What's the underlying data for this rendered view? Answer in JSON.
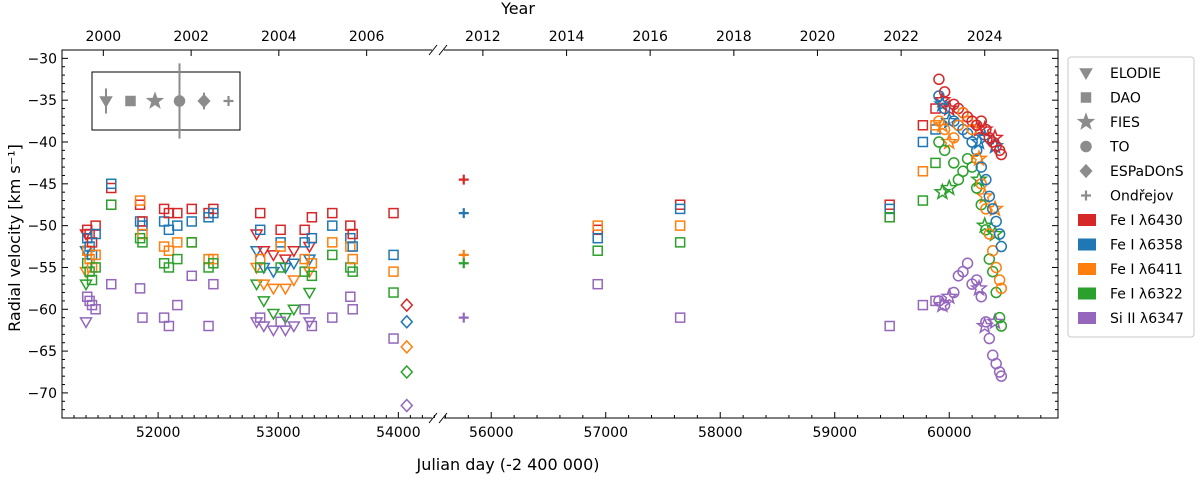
{
  "chart_data": {
    "type": "scatter",
    "xlabel": "Julian day (-2 400 000)",
    "ylabel": "Radial velocity [km s⁻¹]",
    "top_axis_label": "Year",
    "ylim": [
      -73,
      -29
    ],
    "x_left_range": [
      51200,
      54330
    ],
    "x_right_range": [
      55570,
      60950
    ],
    "x_ticks_left": [
      52000,
      53000,
      54000
    ],
    "x_ticks_right": [
      56000,
      57000,
      58000,
      59000,
      60000
    ],
    "y_ticks": [
      -30,
      -35,
      -40,
      -45,
      -50,
      -55,
      -60,
      -65,
      -70
    ],
    "year_ticks": [
      {
        "label": "2000",
        "jd": 51544
      },
      {
        "label": "2002",
        "jd": 52275
      },
      {
        "label": "2004",
        "jd": 53005
      },
      {
        "label": "2006",
        "jd": 53736
      },
      {
        "label": "2012",
        "jd": 55927
      },
      {
        "label": "2014",
        "jd": 56658
      },
      {
        "label": "2016",
        "jd": 57388
      },
      {
        "label": "2018",
        "jd": 58119
      },
      {
        "label": "2020",
        "jd": 58849
      },
      {
        "label": "2022",
        "jd": 59580
      },
      {
        "label": "2024",
        "jd": 60310
      }
    ],
    "instruments": [
      {
        "name": "ELODIE",
        "marker": "triangle"
      },
      {
        "name": "DAO",
        "marker": "square"
      },
      {
        "name": "FIES",
        "marker": "star"
      },
      {
        "name": "TO",
        "marker": "circle"
      },
      {
        "name": "ESPaDOnS",
        "marker": "diamond"
      },
      {
        "name": "Ondřejov",
        "marker": "plus"
      }
    ],
    "series": [
      {
        "name": "Fe I λ6430",
        "color": "#d62728",
        "offset": 2.0
      },
      {
        "name": "Fe I λ6358",
        "color": "#1f77b4",
        "offset": 0.0
      },
      {
        "name": "Fe I λ6411",
        "color": "#ff7f0e",
        "offset": -1.5
      },
      {
        "name": "Fe I λ6322",
        "color": "#2ca02c",
        "offset": -3.5
      },
      {
        "name": "Si II λ6347",
        "color": "#9467bd",
        "offset": -9.0
      }
    ],
    "error_bars": [
      {
        "instrument": "ELODIE",
        "half": 1.5
      },
      {
        "instrument": "DAO",
        "half": 0.2
      },
      {
        "instrument": "FIES",
        "half": 0.2
      },
      {
        "instrument": "TO",
        "half": 4.5
      },
      {
        "instrument": "ESPaDOnS",
        "half": 1.0
      },
      {
        "instrument": "Ondřejov",
        "half": 0.3
      }
    ],
    "epochs": [
      {
        "jd": 51400,
        "inst": "triangle",
        "v": [
          -51.0,
          -53.0,
          -55.5,
          -57.0,
          -61.5
        ]
      },
      {
        "jd": 51410,
        "inst": "square",
        "v": [
          -50.5,
          -51.5,
          -53.0,
          -54.5,
          -58.5
        ]
      },
      {
        "jd": 51430,
        "inst": "square",
        "v": [
          -51.0,
          -52.5,
          -54.0,
          -55.5,
          -59.0
        ]
      },
      {
        "jd": 51450,
        "inst": "square",
        "v": [
          -52.0,
          -53.5,
          -55.0,
          -56.5,
          -59.5
        ]
      },
      {
        "jd": 51480,
        "inst": "square",
        "v": [
          -50.0,
          -51.0,
          -53.5,
          -55.0,
          -60.0
        ]
      },
      {
        "jd": 51610,
        "inst": "square",
        "v": [
          -45.5,
          -45.0,
          -47.5,
          -47.5,
          -57.0
        ]
      },
      {
        "jd": 51850,
        "inst": "square",
        "v": [
          -47.5,
          -49.5,
          -47.0,
          -51.5,
          -57.5
        ]
      },
      {
        "jd": 51870,
        "inst": "square",
        "v": [
          -49.5,
          -50.0,
          -51.0,
          -52.0,
          -61.0
        ]
      },
      {
        "jd": 52050,
        "inst": "square",
        "v": [
          -48.0,
          -49.5,
          -52.5,
          -54.5,
          -61.0
        ]
      },
      {
        "jd": 52090,
        "inst": "square",
        "v": [
          -48.5,
          -50.5,
          -53.0,
          -55.0,
          -62.0
        ]
      },
      {
        "jd": 52160,
        "inst": "square",
        "v": [
          -48.5,
          -50.0,
          -52.0,
          -54.0,
          -59.5
        ]
      },
      {
        "jd": 52280,
        "inst": "square",
        "v": [
          -48.0,
          -49.5,
          -52.0,
          -52.0,
          -56.0
        ]
      },
      {
        "jd": 52420,
        "inst": "square",
        "v": [
          -48.5,
          -49.0,
          -54.0,
          -55.0,
          -62.0
        ]
      },
      {
        "jd": 52460,
        "inst": "square",
        "v": [
          -48.0,
          -48.5,
          -54.0,
          -54.5,
          -57.0
        ]
      },
      {
        "jd": 52820,
        "inst": "triangle",
        "v": [
          -51.0,
          -53.0,
          -55.0,
          -57.0,
          -61.5
        ]
      },
      {
        "jd": 52880,
        "inst": "triangle",
        "v": [
          -53.0,
          -55.0,
          -57.0,
          -59.0,
          -62.0
        ]
      },
      {
        "jd": 52960,
        "inst": "triangle",
        "v": [
          -53.5,
          -55.5,
          -57.5,
          -60.5,
          -62.5
        ]
      },
      {
        "jd": 53060,
        "inst": "triangle",
        "v": [
          -54.0,
          -55.0,
          -57.5,
          -61.0,
          -62.5
        ]
      },
      {
        "jd": 53130,
        "inst": "triangle",
        "v": [
          -53.0,
          -54.5,
          -56.5,
          -60.0,
          -62.0
        ]
      },
      {
        "jd": 53260,
        "inst": "triangle",
        "v": [
          -52.5,
          -54.0,
          -55.5,
          -58.0,
          -61.5
        ]
      },
      {
        "jd": 52850,
        "inst": "square",
        "v": [
          -48.5,
          -50.5,
          -54.0,
          -55.0,
          -61.0
        ]
      },
      {
        "jd": 53020,
        "inst": "square",
        "v": [
          -50.5,
          -52.0,
          -52.5,
          -55.0,
          -61.5
        ]
      },
      {
        "jd": 53220,
        "inst": "square",
        "v": [
          -50.5,
          -52.0,
          -54.0,
          -55.5,
          -60.0
        ]
      },
      {
        "jd": 53280,
        "inst": "square",
        "v": [
          -49.0,
          -51.5,
          -54.5,
          -56.0,
          -62.0
        ]
      },
      {
        "jd": 53450,
        "inst": "square",
        "v": [
          -48.5,
          -50.0,
          -52.0,
          -53.5,
          -61.0
        ]
      },
      {
        "jd": 53600,
        "inst": "square",
        "v": [
          -50.0,
          -51.5,
          -52.5,
          -55.0,
          -58.5
        ]
      },
      {
        "jd": 53620,
        "inst": "square",
        "v": [
          -51.0,
          -52.5,
          -54.0,
          -55.5,
          -60.0
        ]
      },
      {
        "jd": 53960,
        "inst": "square",
        "v": [
          -48.5,
          -53.5,
          -55.5,
          -58.0,
          -63.5
        ]
      },
      {
        "jd": 54070,
        "inst": "diamond",
        "v": [
          -59.5,
          -61.5,
          -64.5,
          -67.5,
          -71.5
        ]
      },
      {
        "jd": 55760,
        "inst": "plus",
        "v": [
          -44.5,
          -48.5,
          -53.5,
          -54.5,
          -61.0
        ]
      },
      {
        "jd": 56930,
        "inst": "square",
        "v": [
          -50.5,
          -51.5,
          -50.0,
          -53.0,
          -57.0
        ]
      },
      {
        "jd": 57650,
        "inst": "square",
        "v": [
          -47.5,
          -48.0,
          -50.0,
          -52.0,
          -61.0
        ]
      },
      {
        "jd": 59480,
        "inst": "square",
        "v": [
          -47.5,
          -48.0,
          -49.0,
          -49.0,
          -62.0
        ]
      },
      {
        "jd": 59770,
        "inst": "square",
        "v": [
          -38.0,
          -40.0,
          -43.5,
          -47.0,
          -59.5
        ]
      },
      {
        "jd": 59880,
        "inst": "square",
        "v": [
          -36.0,
          -38.5,
          -38.0,
          -42.5,
          -59.0
        ]
      },
      {
        "jd": 59940,
        "inst": "star",
        "v": [
          -35.0,
          -35.5,
          -38.0,
          -46.0,
          -59.5
        ]
      },
      {
        "jd": 60000,
        "inst": "star",
        "v": [
          -36.0,
          -37.5,
          -40.0,
          -45.5,
          -58.5
        ]
      },
      {
        "jd": 60260,
        "inst": "star",
        "v": [
          -38.5,
          -40.0,
          -42.0,
          -44.5,
          -57.5
        ]
      },
      {
        "jd": 60310,
        "inst": "star",
        "v": [
          -38.5,
          -39.5,
          -46.5,
          -50.0,
          -62.0
        ]
      },
      {
        "jd": 60400,
        "inst": "star",
        "v": [
          -39.5,
          -40.5,
          -48.0,
          -51.0,
          -61.5
        ]
      },
      {
        "jd": 59910,
        "inst": "circle",
        "v": [
          -32.5,
          -34.5,
          -37.5,
          -40.0,
          -59.0
        ]
      },
      {
        "jd": 59960,
        "inst": "circle",
        "v": [
          -34.0,
          -36.0,
          -38.5,
          -41.0,
          -59.5
        ]
      },
      {
        "jd": 60040,
        "inst": "circle",
        "v": [
          -35.5,
          -37.5,
          -39.5,
          -42.5,
          -58.0
        ]
      },
      {
        "jd": 60080,
        "inst": "circle",
        "v": [
          -36.0,
          -38.0,
          -38.0,
          -44.5,
          -56.0
        ]
      },
      {
        "jd": 60120,
        "inst": "circle",
        "v": [
          -36.5,
          -38.5,
          -36.5,
          -43.5,
          -55.5
        ]
      },
      {
        "jd": 60160,
        "inst": "circle",
        "v": [
          -37.0,
          -39.0,
          -37.5,
          -42.0,
          -54.5
        ]
      },
      {
        "jd": 60200,
        "inst": "circle",
        "v": [
          -37.5,
          -40.0,
          -38.5,
          -43.0,
          -57.0
        ]
      },
      {
        "jd": 60240,
        "inst": "circle",
        "v": [
          -38.0,
          -41.0,
          -42.0,
          -45.5,
          -56.5
        ]
      },
      {
        "jd": 60280,
        "inst": "circle",
        "v": [
          -37.5,
          -43.0,
          -45.0,
          -47.5,
          -58.5
        ]
      },
      {
        "jd": 60320,
        "inst": "circle",
        "v": [
          -38.5,
          -44.5,
          -48.0,
          -50.5,
          -61.5
        ]
      },
      {
        "jd": 60350,
        "inst": "circle",
        "v": [
          -39.5,
          -46.5,
          -51.0,
          -54.0,
          -63.5
        ]
      },
      {
        "jd": 60380,
        "inst": "circle",
        "v": [
          -40.0,
          -48.0,
          -53.0,
          -55.5,
          -65.5
        ]
      },
      {
        "jd": 60410,
        "inst": "circle",
        "v": [
          -40.5,
          -49.5,
          -55.0,
          -58.0,
          -66.5
        ]
      },
      {
        "jd": 60440,
        "inst": "circle",
        "v": [
          -41.0,
          -51.0,
          -56.5,
          -61.0,
          -67.5
        ]
      },
      {
        "jd": 60455,
        "inst": "circle",
        "v": [
          -41.5,
          -52.5,
          -57.5,
          -62.0,
          -68.0
        ]
      }
    ]
  },
  "legend": {
    "instruments": [
      "ELODIE",
      "DAO",
      "FIES",
      "TO",
      "ESPaDOnS",
      "Ondřejov"
    ],
    "lines": [
      "Fe I λ6430",
      "Fe I λ6358",
      "Fe I λ6411",
      "Fe I λ6322",
      "Si II λ6347"
    ]
  }
}
